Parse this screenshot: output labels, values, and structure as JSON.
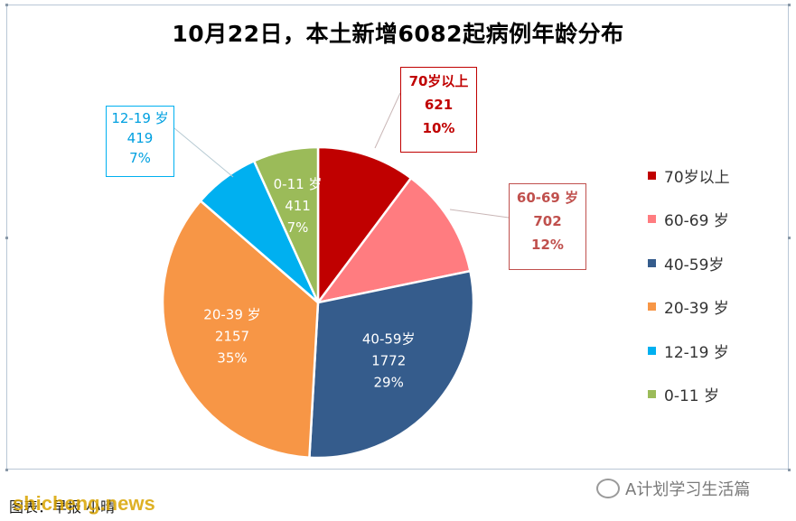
{
  "chart_data": {
    "type": "pie",
    "title": "10月22日，本土新增6082起病例年龄分布",
    "legend_position": "right",
    "start_angle_deg": 0,
    "direction": "clockwise",
    "slices": [
      {
        "label": "70岁以上",
        "value": 621,
        "percent": "10%",
        "color": "#c00000",
        "legend": "70岁以上",
        "callout_label": "70岁以上"
      },
      {
        "label": "60-69 岁",
        "value": 702,
        "percent": "12%",
        "color": "#ff7c80",
        "legend": "60-69 岁",
        "callout_label": "60-69 岁"
      },
      {
        "label": "40-59岁",
        "value": 1772,
        "percent": "29%",
        "color": "#355c8c",
        "legend": "40-59岁"
      },
      {
        "label": "20-39 岁",
        "value": 2157,
        "percent": "35%",
        "color": "#f79646",
        "legend": "20-39 岁"
      },
      {
        "label": "12-19 岁",
        "value": 419,
        "percent": "7%",
        "color": "#00b0f0",
        "legend": "12-19 岁",
        "callout_label": "12-19 岁"
      },
      {
        "label": "0-11 岁",
        "value": 411,
        "percent": "7%",
        "color": "#9bbb59",
        "legend": "0-11 岁"
      }
    ]
  },
  "footer": {
    "source_text": "图表：早报  小晴",
    "watermark": "shicheng.news",
    "account": "A计划学习生活篇"
  }
}
